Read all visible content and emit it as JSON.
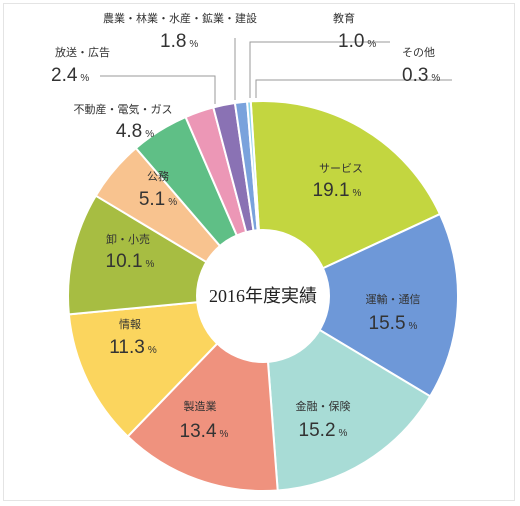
{
  "chart_data": {
    "type": "pie",
    "variant": "donut",
    "center_label": "2016年度実績",
    "unit": "%",
    "slices": [
      {
        "label": "サービス",
        "value": 19.1,
        "color": "#c3d640"
      },
      {
        "label": "運輸・通信",
        "value": 15.5,
        "color": "#6e98d8"
      },
      {
        "label": "金融・保険",
        "value": 15.2,
        "color": "#a8dcd6"
      },
      {
        "label": "製造業",
        "value": 13.4,
        "color": "#ef927e"
      },
      {
        "label": "情報",
        "value": 11.3,
        "color": "#fbd55e"
      },
      {
        "label": "卸・小売",
        "value": 10.1,
        "color": "#a7bd42"
      },
      {
        "label": "公務",
        "value": 5.1,
        "color": "#f8c38f"
      },
      {
        "label": "不動産・電気・ガス",
        "value": 4.8,
        "color": "#5fbf86"
      },
      {
        "label": "放送・広告",
        "value": 2.4,
        "color": "#ec97b6"
      },
      {
        "label": "農業・林業・水産・鉱業・建設",
        "value": 1.8,
        "color": "#8a72b4"
      },
      {
        "label": "教育",
        "value": 1.0,
        "color": "#7aa2dc"
      },
      {
        "label": "その他",
        "value": 0.3,
        "color": "#8fd3ea"
      }
    ]
  }
}
